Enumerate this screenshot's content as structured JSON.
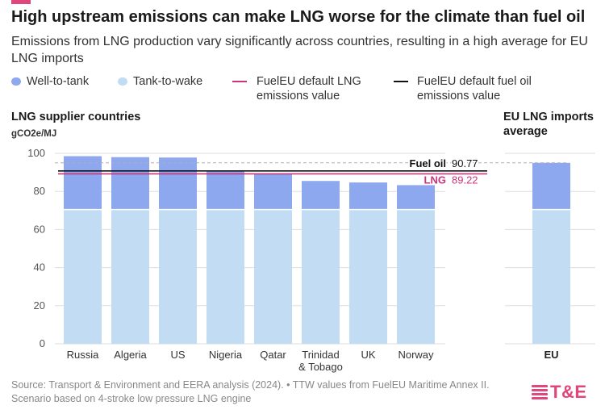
{
  "header": {
    "title": "High upstream emissions can make LNG worse for the climate than fuel oil",
    "subtitle": "Emissions from LNG production vary significantly across countries, resulting in a high average for EU LNG imports"
  },
  "legend": [
    {
      "label": "Well-to-tank",
      "kind": "bar",
      "color": "#8ea8ef"
    },
    {
      "label": "Tank-to-wake",
      "kind": "bar",
      "color": "#c2dcf4"
    },
    {
      "label": "FuelEU default LNG emissions value",
      "kind": "line",
      "color": "#c9347a"
    },
    {
      "label": "FuelEU default fuel oil emissions value",
      "kind": "line",
      "color": "#111111"
    }
  ],
  "panels": {
    "left_title": "LNG supplier countries",
    "right_title": "EU LNG imports average",
    "unit": "gCO2e/MJ"
  },
  "footer": {
    "source": "Source: Transport & Environment and EERA analysis (2024). • TTW values from FuelEU Maritime Annex II. Scenario based on 4-stroke low pressure LNG engine",
    "logo": "T&E"
  },
  "colors": {
    "wtt": "#8ea8ef",
    "ttw": "#c2dcf4",
    "lng_line": "#c9347a",
    "fuel_oil_line": "#111111",
    "grid": "#dddddd",
    "brand": "#e0457b"
  },
  "chart_data": [
    {
      "type": "bar",
      "stacked": true,
      "title": "LNG supplier countries",
      "ylabel": "gCO2e/MJ",
      "ylim": [
        0,
        100
      ],
      "yticks": [
        0,
        20,
        40,
        60,
        80,
        100
      ],
      "grid": true,
      "categories": [
        "Russia",
        "Algeria",
        "US",
        "Nigeria",
        "Qatar",
        "Trinidad\n& Tobago",
        "UK",
        "Norway"
      ],
      "series": [
        {
          "name": "Tank-to-wake",
          "values": [
            70.5,
            70.5,
            70.5,
            70.5,
            70.5,
            70.5,
            70.5,
            70.5
          ]
        },
        {
          "name": "Well-to-tank",
          "values": [
            28.0,
            27.5,
            27.3,
            20.3,
            18.5,
            15.0,
            14.2,
            12.8
          ]
        }
      ],
      "reference_lines": [
        {
          "label": "Fuel oil",
          "value_label": "90.77",
          "value": 90.77
        },
        {
          "label": "LNG",
          "value_label": "89.22",
          "value": 89.22
        }
      ]
    },
    {
      "type": "bar",
      "stacked": true,
      "title": "EU LNG imports average",
      "ylim": [
        0,
        100
      ],
      "categories": [
        "EU"
      ],
      "series": [
        {
          "name": "Tank-to-wake",
          "values": [
            70.5
          ]
        },
        {
          "name": "Well-to-tank",
          "values": [
            24.5
          ]
        }
      ],
      "reference_lines": [
        {
          "value": 95.0
        }
      ]
    }
  ]
}
